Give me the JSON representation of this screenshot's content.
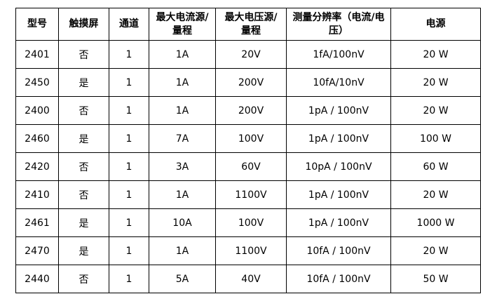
{
  "headers": [
    "型号",
    "触摸屏",
    "通道",
    "最大电流源/量程",
    "最大电压源/量程",
    "测量分辨率（电流/电压）",
    "电源"
  ],
  "rows": [
    [
      "2401",
      "否",
      "1",
      "1A",
      "20V",
      "1fA/100nV",
      "20 W"
    ],
    [
      "2450",
      "是",
      "1",
      "1A",
      "200V",
      "10fA/10nV",
      "20 W"
    ],
    [
      "2400",
      "否",
      "1",
      "1A",
      "200V",
      "1pA / 100nV",
      "20 W"
    ],
    [
      "2460",
      "是",
      "1",
      "7A",
      "100V",
      "1pA / 100nV",
      "100 W"
    ],
    [
      "2420",
      "否",
      "1",
      "3A",
      "60V",
      "10pA / 100nV",
      "60 W"
    ],
    [
      "2410",
      "否",
      "1",
      "1A",
      "1100V",
      "1pA / 100nV",
      "20 W"
    ],
    [
      "2461",
      "是",
      "1",
      "10A",
      "100V",
      "1pA / 100nV",
      "1000 W"
    ],
    [
      "2470",
      "是",
      "1",
      "1A",
      "1100V",
      "10fA / 100nV",
      "20 W"
    ],
    [
      "2440",
      "否",
      "1",
      "5A",
      "40V",
      "10fA / 100nV",
      "50 W"
    ]
  ]
}
